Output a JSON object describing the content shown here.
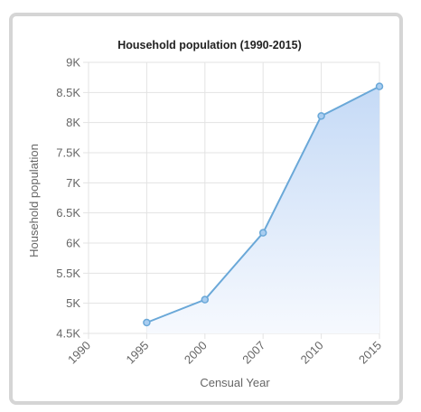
{
  "chart_data": {
    "type": "area",
    "title": "Household population (1990-2015)",
    "xlabel": "Censual Year",
    "ylabel": "Household population",
    "categories": [
      "1990",
      "1995",
      "2000",
      "2007",
      "2010",
      "2015"
    ],
    "series": [
      {
        "values": [
          null,
          4680,
          5060,
          6170,
          8110,
          8600
        ]
      }
    ],
    "ylim": [
      4500,
      9000
    ],
    "yticks": [
      "4.5K",
      "5K",
      "5.5K",
      "6K",
      "6.5K",
      "7K",
      "7.5K",
      "8K",
      "8.5K",
      "9K"
    ],
    "grid": true,
    "colors": {
      "line": "#6aa8d8",
      "point_fill": "#a9cdf0",
      "area_top": "#c5daf6",
      "area_bottom": "#f6f9fe",
      "grid": "#e3e3e3",
      "frame": "#d5d5d5"
    }
  }
}
